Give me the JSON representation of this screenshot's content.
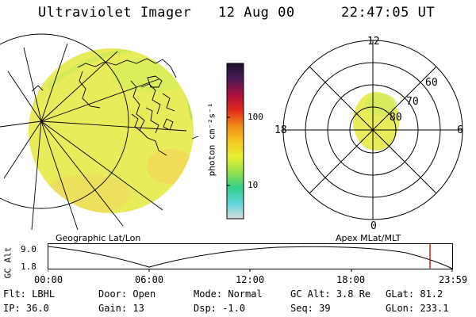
{
  "header": {
    "title": "Ultraviolet Imager",
    "date": "12 Aug 00",
    "time": "22:47:05 UT"
  },
  "left_panel": {
    "label": "Geographic Lat/Lon",
    "fill_color": "#e8ec5a"
  },
  "colorbar": {
    "unit_label": "photon cm⁻²s⁻¹",
    "tick_labels": [
      "100",
      "10"
    ],
    "stops": [
      "#d9dcdc",
      "#5fd4dc",
      "#34d08a",
      "#96e04a",
      "#eaf033",
      "#f5c620",
      "#f08a18",
      "#e2281c",
      "#a8103e",
      "#4a1a55",
      "#1c1030"
    ]
  },
  "polar_plot": {
    "label": "Apex MLat/MLT",
    "mlt_labels": {
      "top": "12",
      "right": "6",
      "bottom": "0",
      "left": "18"
    },
    "ring_labels": [
      "60",
      "70",
      "80"
    ],
    "oval_color": "#e8ec5a"
  },
  "orbit_plot": {
    "axis_title": "GC Alt",
    "y_ticks": [
      "9.0",
      "1.8"
    ],
    "x_ticks": [
      "00:00",
      "06:00",
      "12:00",
      "18:00",
      "23:59"
    ],
    "marker_color": "#d02020"
  },
  "footer": {
    "row1": [
      {
        "key": "Flt:",
        "value": "LBHL"
      },
      {
        "key": "Door:",
        "value": "Open"
      },
      {
        "key": "Mode:",
        "value": "Normal"
      },
      {
        "key": "GC Alt:",
        "value": "3.8 Re"
      },
      {
        "key": "GLat:",
        "value": "81.2"
      }
    ],
    "row2": [
      {
        "key": "IP:",
        "value": "36.0"
      },
      {
        "key": "Gain:",
        "value": "13"
      },
      {
        "key": "Dsp:",
        "value": "-1.0"
      },
      {
        "key": "Seq:",
        "value": "39"
      },
      {
        "key": "GLon:",
        "value": "233.1"
      }
    ]
  }
}
